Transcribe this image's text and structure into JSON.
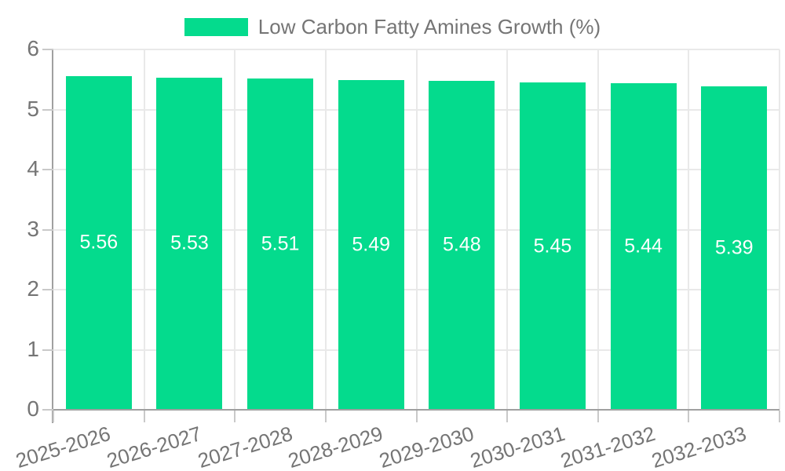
{
  "legend": {
    "label": "Low Carbon Fatty Amines Growth (%)",
    "swatch_color": "#04DB8D"
  },
  "chart_data": {
    "type": "bar",
    "title": "Low Carbon Fatty Amines Growth (%)",
    "categories": [
      "2025-2026",
      "2026-2027",
      "2027-2028",
      "2028-2029",
      "2029-2030",
      "2030-2031",
      "2031-2032",
      "2032-2033"
    ],
    "series": [
      {
        "name": "Low Carbon Fatty Amines Growth (%)",
        "values": [
          5.56,
          5.53,
          5.51,
          5.49,
          5.48,
          5.45,
          5.44,
          5.39
        ]
      }
    ],
    "bar_value_labels": [
      "5.56",
      "5.53",
      "5.51",
      "5.49",
      "5.48",
      "5.45",
      "5.44",
      "5.39"
    ],
    "xlabel": "",
    "ylabel": "",
    "ylim": [
      0,
      6
    ],
    "yticks": [
      0,
      1,
      2,
      3,
      4,
      5,
      6
    ],
    "grid": true,
    "legend_position": "top-center",
    "colors": {
      "bar": "#04DB8D",
      "bar_label": "#ffffff",
      "axis_text": "#757575",
      "axis_line": "#a0a0a0",
      "tick_line": "#c9c9c9",
      "grid_line": "#e9e9e9",
      "background": "#ffffff"
    }
  }
}
